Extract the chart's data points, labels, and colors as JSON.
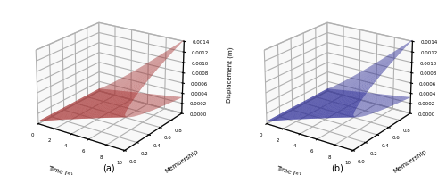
{
  "title_a": "(a)",
  "title_b": "(b)",
  "zlabel": "Displacement (m)",
  "xlabel": "Time (s)",
  "ylabel": "Membership",
  "zlim": [
    0,
    0.0014
  ],
  "zticks": [
    0.0,
    0.0002,
    0.0004,
    0.0006,
    0.0008,
    0.001,
    0.0012,
    0.0014
  ],
  "time_ticks": [
    0,
    2,
    4,
    6,
    8,
    10
  ],
  "membership_ticks": [
    0.0,
    0.2,
    0.4,
    0.6,
    0.8
  ],
  "color_a": "#dd4444",
  "color_a_alpha": 0.55,
  "color_b": "#4444cc",
  "color_b_alpha": 0.6,
  "figsize": [
    5.0,
    1.96
  ],
  "dpi": 100,
  "elev": 22,
  "azim": -55
}
